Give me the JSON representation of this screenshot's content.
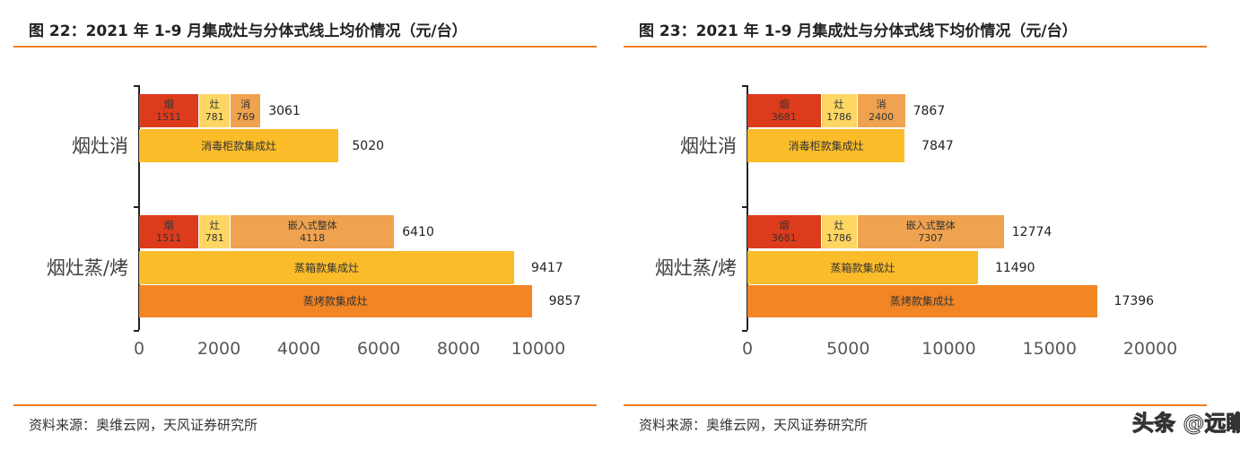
{
  "colors": {
    "hood": "#DC3B1C",
    "stove": "#FDD663",
    "third": "#EFA24F",
    "bar_yellow": "#FBBC2A",
    "bar_orange": "#F28524",
    "rule": "#EE7D22"
  },
  "panels": [
    {
      "title": "图 22：2021 年 1-9 月集成灶与分体式线上均价情况（元/台）",
      "source": "资料来源：奥维云网，天风证券研究所"
    },
    {
      "title": "图 23：2021 年 1-9 月集成灶与分体式线下均价情况（元/台）",
      "source": "资料来源：奥维云网，天风证券研究所"
    }
  ],
  "watermark": "头条 @远瞻智库",
  "chart_data": [
    {
      "type": "bar",
      "orientation": "horizontal",
      "xlim": [
        0,
        10000
      ],
      "xticks": [
        "0",
        "2000",
        "4000",
        "6000",
        "8000",
        "10000"
      ],
      "groups": [
        {
          "category": "烟灶消",
          "stacked": {
            "segments": [
              {
                "name": "烟",
                "value": 1511,
                "color": "hood"
              },
              {
                "name": "灶",
                "value": 781,
                "color": "stove"
              },
              {
                "name": "消",
                "value": 769,
                "color": "third"
              }
            ],
            "total": 3061
          },
          "bars": [
            {
              "name": "消毒柜款集成灶",
              "value": 5020,
              "color": "bar_yellow"
            }
          ]
        },
        {
          "category": "烟灶蒸/烤",
          "stacked": {
            "segments": [
              {
                "name": "烟",
                "value": 1511,
                "color": "hood"
              },
              {
                "name": "灶",
                "value": 781,
                "color": "stove"
              },
              {
                "name": "嵌入式整体",
                "value": 4118,
                "color": "third"
              }
            ],
            "total": 6410
          },
          "bars": [
            {
              "name": "蒸箱款集成灶",
              "value": 9417,
              "color": "bar_yellow"
            },
            {
              "name": "蒸烤款集成灶",
              "value": 9857,
              "color": "bar_orange"
            }
          ]
        }
      ]
    },
    {
      "type": "bar",
      "orientation": "horizontal",
      "xlim": [
        0,
        20000
      ],
      "xticks": [
        "0",
        "5000",
        "10000",
        "15000",
        "20000"
      ],
      "groups": [
        {
          "category": "烟灶消",
          "stacked": {
            "segments": [
              {
                "name": "烟",
                "value": 3681,
                "color": "hood"
              },
              {
                "name": "灶",
                "value": 1786,
                "color": "stove"
              },
              {
                "name": "消",
                "value": 2400,
                "color": "third"
              }
            ],
            "total": 7867
          },
          "bars": [
            {
              "name": "消毒柜款集成灶",
              "value": 7847,
              "color": "bar_yellow"
            }
          ]
        },
        {
          "category": "烟灶蒸/烤",
          "stacked": {
            "segments": [
              {
                "name": "烟",
                "value": 3681,
                "color": "hood"
              },
              {
                "name": "灶",
                "value": 1786,
                "color": "stove"
              },
              {
                "name": "嵌入式整体",
                "value": 7307,
                "color": "third"
              }
            ],
            "total": 12774
          },
          "bars": [
            {
              "name": "蒸箱款集成灶",
              "value": 11490,
              "color": "bar_yellow"
            },
            {
              "name": "蒸烤款集成灶",
              "value": 17396,
              "color": "bar_orange"
            }
          ]
        }
      ]
    }
  ]
}
